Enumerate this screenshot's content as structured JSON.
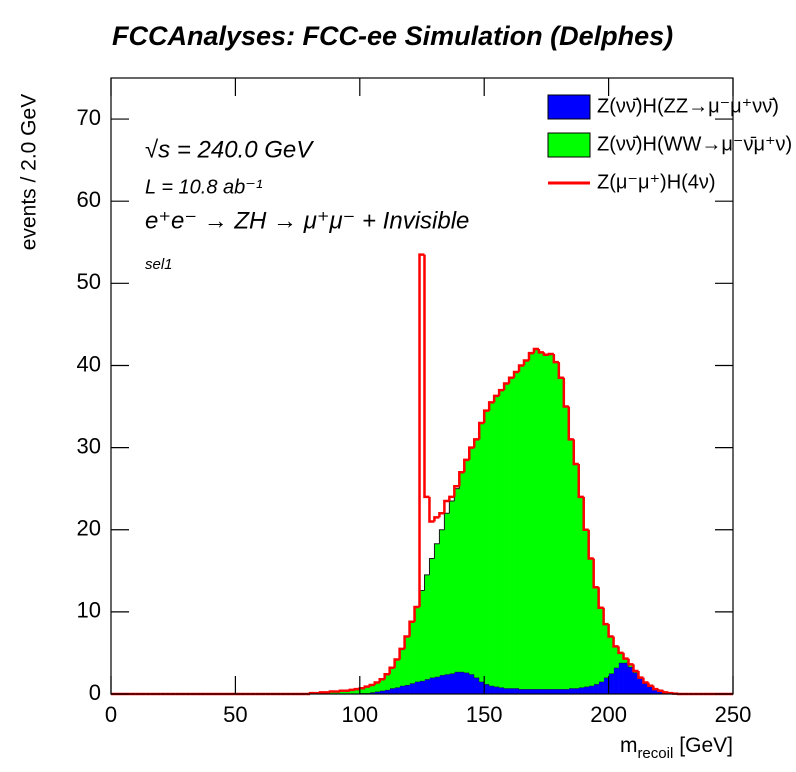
{
  "chart_data": {
    "type": "histogram",
    "stacked": true,
    "title": "FCCAnalyses: FCC-ee Simulation (Delphes)",
    "y_label": "events / 2.0 GeV",
    "x_label": {
      "base": "m",
      "sub": "recoil",
      "unit": "[GeV]"
    },
    "annotations": [
      "√s = 240.0 GeV",
      "L = 10.8 ab⁻¹",
      "e⁺e⁻ → ZH → μ⁺μ⁻ + Invisible",
      "sel1"
    ],
    "xlim": [
      0,
      250
    ],
    "ylim": [
      0,
      75
    ],
    "xticks": [
      0,
      50,
      100,
      150,
      200,
      250
    ],
    "yticks": [
      0,
      10,
      20,
      30,
      40,
      50,
      60,
      70
    ],
    "legend": "top-right",
    "bins": [
      0,
      2,
      4,
      6,
      8,
      10,
      12,
      14,
      16,
      18,
      20,
      22,
      24,
      26,
      28,
      30,
      32,
      34,
      36,
      38,
      40,
      42,
      44,
      46,
      48,
      50,
      52,
      54,
      56,
      58,
      60,
      62,
      64,
      66,
      68,
      70,
      72,
      74,
      76,
      78,
      80,
      82,
      84,
      86,
      88,
      90,
      92,
      94,
      96,
      98,
      100,
      102,
      104,
      106,
      108,
      110,
      112,
      114,
      116,
      118,
      120,
      122,
      124,
      126,
      128,
      130,
      132,
      134,
      136,
      138,
      140,
      142,
      144,
      146,
      148,
      150,
      152,
      154,
      156,
      158,
      160,
      162,
      164,
      166,
      168,
      170,
      172,
      174,
      176,
      178,
      180,
      182,
      184,
      186,
      188,
      190,
      192,
      194,
      196,
      198,
      200,
      202,
      204,
      206,
      208,
      210,
      212,
      214,
      216,
      218,
      220,
      222,
      224,
      226,
      228,
      230,
      232,
      234,
      236,
      238,
      240,
      242,
      244,
      246,
      248,
      250
    ],
    "series": [
      {
        "name": "Z(νν̄)H(ZZ→μ⁻μ⁺νν̄)",
        "color": "#0000ff",
        "fill": true,
        "values": [
          0,
          0,
          0,
          0,
          0,
          0,
          0,
          0,
          0,
          0,
          0,
          0,
          0,
          0,
          0,
          0,
          0,
          0,
          0,
          0,
          0,
          0,
          0,
          0,
          0,
          0,
          0,
          0,
          0,
          0,
          0,
          0,
          0,
          0,
          0,
          0,
          0,
          0,
          0,
          0,
          0,
          0,
          0,
          0,
          0,
          0,
          0,
          0,
          0,
          0,
          0.1,
          0.1,
          0.2,
          0.3,
          0.4,
          0.5,
          0.7,
          0.8,
          1.0,
          1.1,
          1.3,
          1.5,
          1.6,
          1.8,
          2.0,
          2.1,
          2.3,
          2.4,
          2.5,
          2.7,
          2.7,
          2.6,
          2.4,
          2.0,
          1.5,
          1.2,
          1.0,
          0.9,
          0.8,
          0.7,
          0.7,
          0.7,
          0.6,
          0.6,
          0.6,
          0.6,
          0.6,
          0.6,
          0.6,
          0.6,
          0.6,
          0.6,
          0.7,
          0.7,
          0.8,
          0.9,
          1.0,
          1.2,
          1.5,
          2.0,
          2.5,
          3.2,
          3.8,
          3.8,
          3.3,
          2.6,
          1.9,
          1.3,
          0.9,
          0.6,
          0.4,
          0.2,
          0.1,
          0.05,
          0,
          0,
          0,
          0,
          0,
          0,
          0,
          0,
          0,
          0,
          0
        ]
      },
      {
        "name": "Z(νν̄)H(WW→μ⁻ν̄μ⁺ν)",
        "color": "#00ff00",
        "fill": true,
        "values": [
          0,
          0,
          0,
          0,
          0,
          0,
          0,
          0,
          0,
          0,
          0,
          0,
          0,
          0,
          0,
          0,
          0,
          0,
          0,
          0,
          0,
          0,
          0,
          0,
          0,
          0,
          0,
          0,
          0,
          0,
          0,
          0,
          0,
          0,
          0,
          0,
          0,
          0,
          0,
          0,
          0.1,
          0.1,
          0.2,
          0.2,
          0.3,
          0.3,
          0.4,
          0.4,
          0.5,
          0.6,
          0.6,
          0.8,
          0.9,
          1.1,
          1.4,
          1.9,
          2.5,
          3.4,
          4.5,
          5.9,
          7.5,
          9.1,
          11.0,
          12.7,
          14.5,
          16.2,
          17.7,
          19.6,
          21.0,
          22.3,
          24.3,
          25.9,
          27.6,
          29.0,
          31.5,
          33.3,
          34.5,
          35.4,
          36.2,
          37.1,
          37.8,
          38.5,
          39.4,
          40.0,
          40.9,
          41.4,
          41.0,
          40.7,
          40.8,
          39.8,
          37.9,
          34.4,
          30.3,
          27.3,
          23.2,
          19.1,
          15.5,
          11.8,
          9.0,
          6.5,
          4.5,
          2.6,
          1.2,
          0.5,
          0.3,
          0.2,
          0.1,
          0.1,
          0.1,
          0,
          0,
          0,
          0,
          0,
          0,
          0,
          0,
          0,
          0,
          0,
          0,
          0,
          0,
          0,
          0
        ]
      },
      {
        "name": "Z(μ⁻μ⁺)H(4ν)",
        "color": "#ff0000",
        "fill": false,
        "values": [
          0,
          0,
          0,
          0,
          0,
          0,
          0,
          0,
          0,
          0,
          0,
          0,
          0,
          0,
          0,
          0,
          0,
          0,
          0,
          0,
          0,
          0,
          0,
          0,
          0,
          0,
          0,
          0,
          0,
          0,
          0,
          0,
          0,
          0,
          0,
          0,
          0,
          0,
          0,
          0,
          0,
          0,
          0,
          0,
          0,
          0,
          0,
          0,
          0,
          0,
          0,
          0,
          0,
          0,
          0,
          0,
          0,
          0,
          0,
          0,
          0,
          0,
          40.9,
          9.5,
          4.5,
          3.2,
          2.0,
          1.5,
          0.5,
          0.3,
          0,
          0,
          0,
          0,
          0,
          0,
          0,
          0,
          0,
          0,
          0,
          0,
          0,
          0,
          0,
          0,
          0,
          0,
          0,
          0,
          0,
          0,
          0,
          0,
          0,
          0,
          0,
          0,
          0,
          0,
          0,
          0,
          0,
          0,
          0,
          0,
          0,
          0,
          0,
          0,
          0,
          0,
          0,
          0,
          0,
          0,
          0,
          0,
          0,
          0,
          0,
          0,
          0,
          0,
          0
        ]
      }
    ]
  }
}
